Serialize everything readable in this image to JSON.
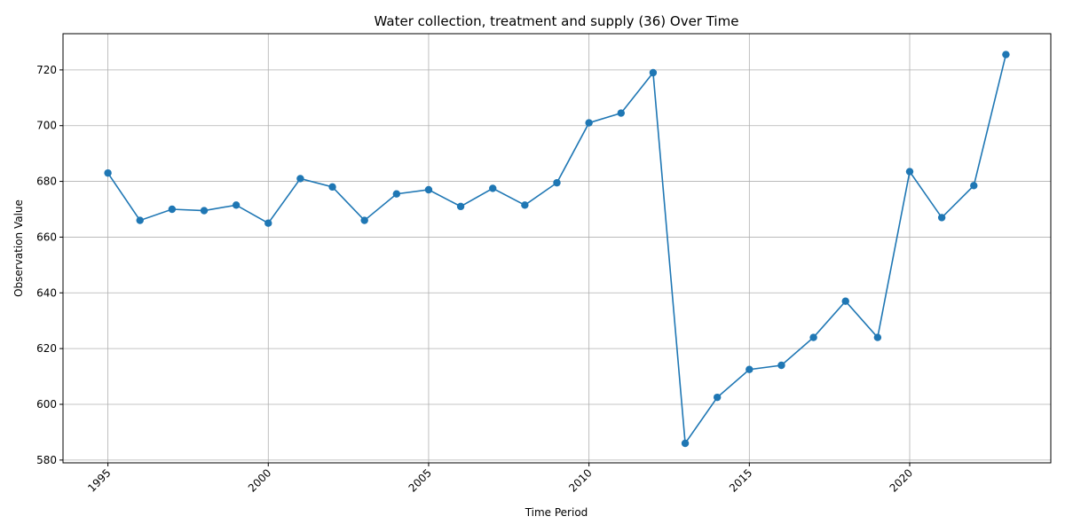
{
  "chart_data": {
    "type": "line",
    "title": "Water collection, treatment and supply (36) Over Time",
    "xlabel": "Time Period",
    "ylabel": "Observation Value",
    "xlim": [
      1993.6,
      2024.4
    ],
    "ylim": [
      579,
      733
    ],
    "xticks": [
      1995,
      2000,
      2005,
      2010,
      2015,
      2020
    ],
    "yticks": [
      580,
      600,
      620,
      640,
      660,
      680,
      700,
      720
    ],
    "grid": true,
    "color": "#1f77b4",
    "marker": "circle",
    "x": [
      1995,
      1996,
      1997,
      1998,
      1999,
      2000,
      2001,
      2002,
      2003,
      2004,
      2005,
      2006,
      2007,
      2008,
      2009,
      2010,
      2011,
      2012,
      2013,
      2014,
      2015,
      2016,
      2017,
      2018,
      2019,
      2020,
      2021,
      2022,
      2023
    ],
    "y": [
      683.0,
      666.0,
      670.0,
      669.5,
      671.5,
      665.0,
      681.0,
      678.0,
      666.0,
      675.5,
      677.0,
      671.0,
      677.5,
      671.5,
      679.5,
      701.0,
      704.5,
      719.0,
      586.0,
      602.5,
      612.5,
      614.0,
      624.0,
      637.0,
      624.0,
      683.5,
      667.0,
      678.5,
      725.5
    ]
  }
}
